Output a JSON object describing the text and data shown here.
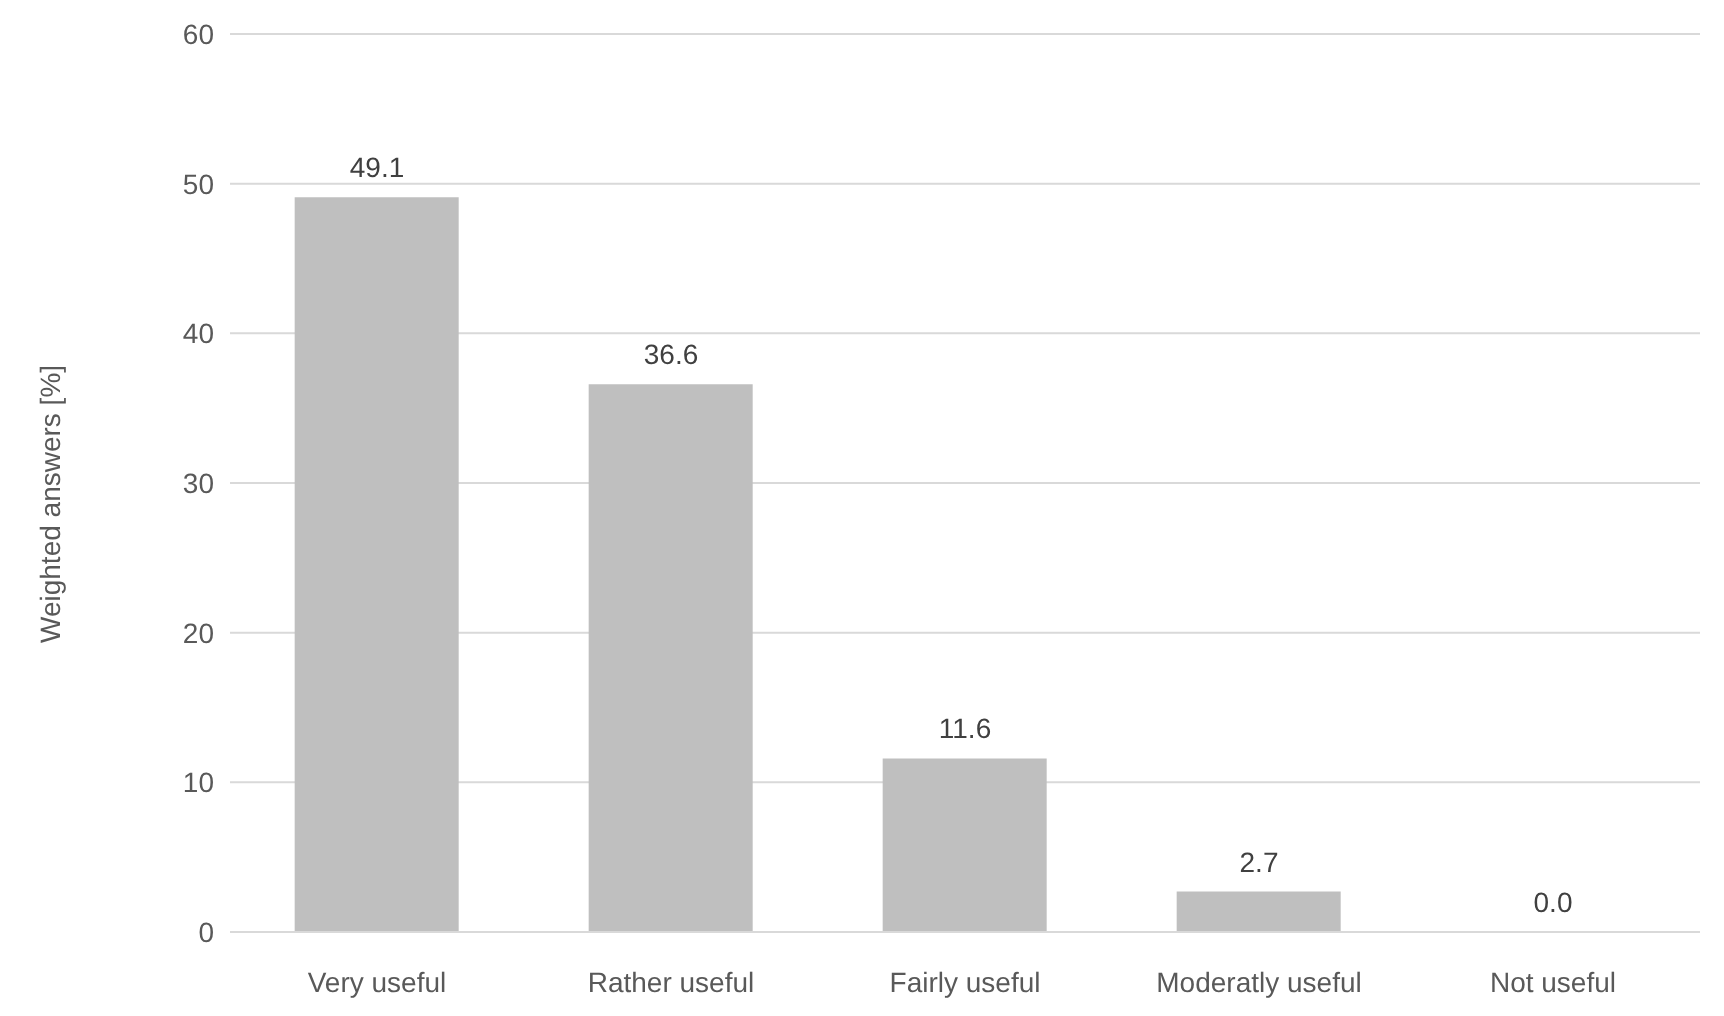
{
  "chart_data": {
    "type": "bar",
    "ylabel": "Weighted answers [%]",
    "categories": [
      "Very useful",
      "Rather useful",
      "Fairly useful",
      "Moderatly useful",
      "Not useful"
    ],
    "values": [
      49.1,
      36.6,
      11.6,
      2.7,
      0.0
    ],
    "value_labels": [
      "49.1",
      "36.6",
      "11.6",
      "2.7",
      "0.0"
    ],
    "color": "#bfbfbf",
    "ylim": [
      0,
      60
    ],
    "yticks": [
      0,
      10,
      20,
      30,
      40,
      50,
      60
    ],
    "grid": "y"
  }
}
